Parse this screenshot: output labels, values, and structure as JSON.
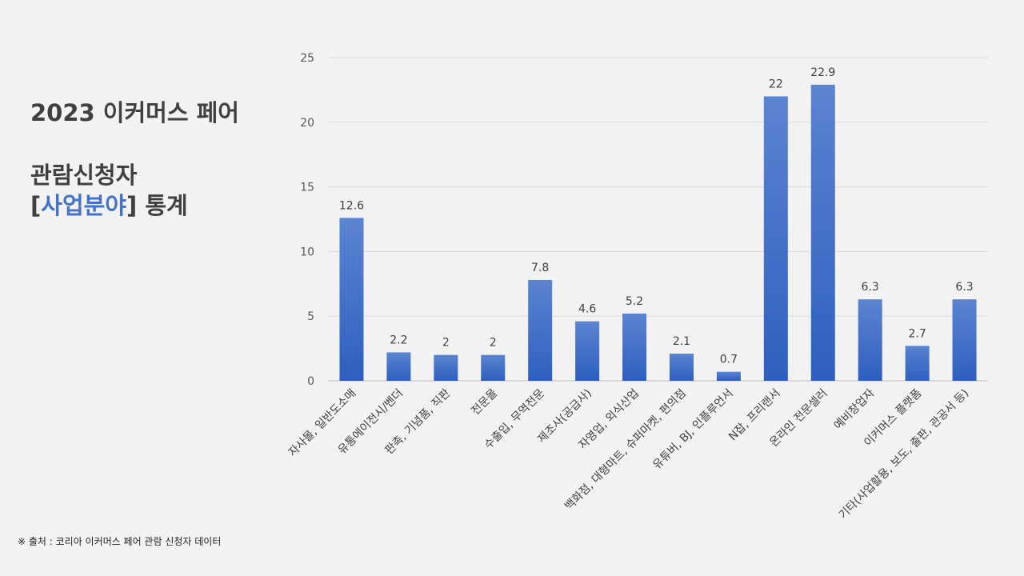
{
  "title": {
    "line1": "2023 이커머스 페어",
    "line2": "관람신청자",
    "line3_open": "[",
    "line3_accent": "사업분야",
    "line3_close": "] 통계"
  },
  "source": "※ 출처 : 코리아 이커머스 페어 관람 신청자 데이터",
  "colors": {
    "bar_top": "#5b84d0",
    "bar_bottom": "#2e5fbf",
    "accent": "#4472c4",
    "title": "#404040"
  },
  "chart_data": {
    "type": "bar",
    "categories": [
      "자사몰, 일반도소매",
      "유통에이전시/벤더",
      "판촉, 기념품, 직판",
      "전문몰",
      "수출입, 무역전문",
      "제조사(공급사)",
      "자영업, 외식산업",
      "백화점, 대형마트, 슈퍼마켓, 편의점",
      "유튜버, BJ, 인플루언서",
      "N잡, 프리랜서",
      "온라인 전문셀러",
      "예비창업자",
      "이커머스 플랫폼",
      "기타(사업활용, 보도, 출판, 관공서 등)"
    ],
    "values": [
      12.6,
      2.2,
      2,
      2,
      7.8,
      4.6,
      5.2,
      2.1,
      0.7,
      22,
      22.9,
      6.3,
      2.7,
      6.3
    ],
    "yticks": [
      0,
      5,
      10,
      15,
      20,
      25
    ],
    "ylim": [
      0,
      25
    ],
    "grid": true,
    "data_labels": true,
    "legend": "none"
  }
}
